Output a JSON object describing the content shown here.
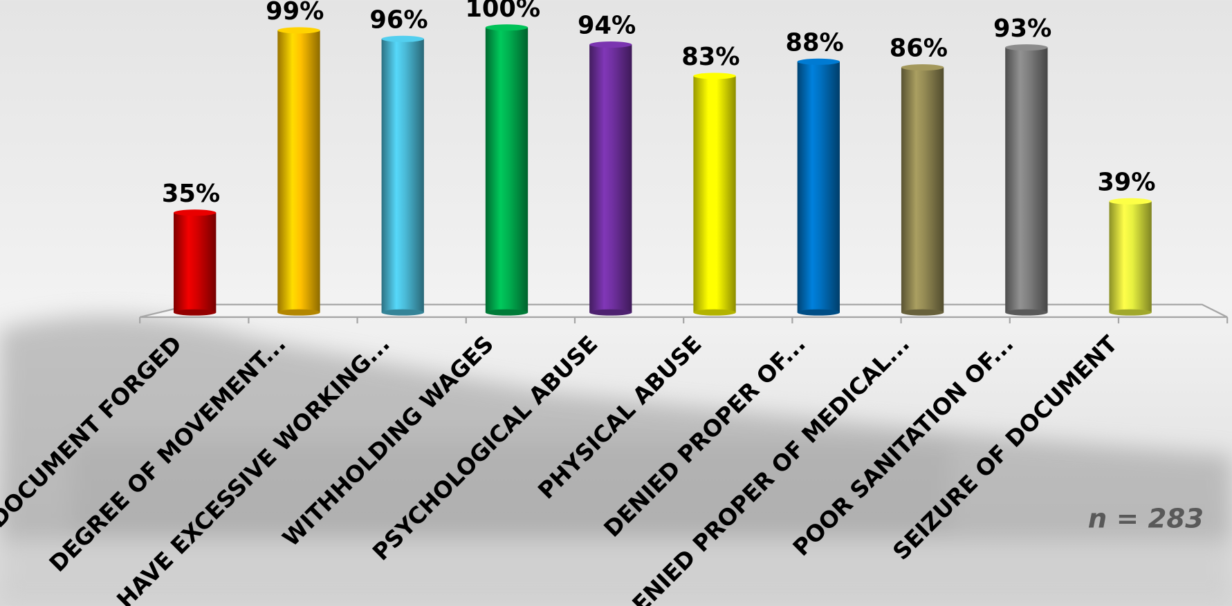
{
  "chart_data": {
    "type": "bar",
    "categories": [
      "DOCUMENT FORGED",
      "DEGREE OF MOVEMENT...",
      "HAVE EXCESSIVE WORKING...",
      "WITHHOLDING WAGES",
      "PSYCHOLOGICAL ABUSE",
      "PHYSICAL ABUSE",
      "DENIED PROPER OF...",
      "DENIED PROPER OF MEDICAL...",
      "POOR SANITATION OF...",
      "SEIZURE OF DOCUMENT"
    ],
    "values": [
      35,
      99,
      96,
      100,
      94,
      83,
      88,
      86,
      93,
      39
    ],
    "value_labels": [
      "35%",
      "99%",
      "96%",
      "100%",
      "94%",
      "83%",
      "88%",
      "86%",
      "93%",
      "39%"
    ],
    "colors": [
      "#d40000",
      "#ffc000",
      "#4bbcd9",
      "#00b050",
      "#7030a0",
      "#ffff00",
      "#0070c0",
      "#948a54",
      "#7f7f7f",
      "#e6f040"
    ],
    "ylim": [
      0,
      100
    ],
    "note": "n = 283"
  }
}
